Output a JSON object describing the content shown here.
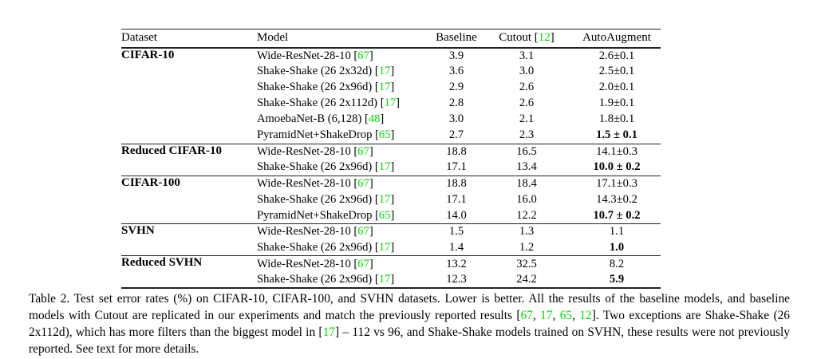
{
  "colors": {
    "citation_green": "#00dd00",
    "rule": "#222222",
    "text": "#000000",
    "background": "#ffffff"
  },
  "table": {
    "headers": {
      "dataset": "Dataset",
      "model": "Model",
      "baseline": "Baseline",
      "cutout": [
        {
          "t": "Cutout ["
        },
        {
          "t": "12",
          "g": true
        },
        {
          "t": "]"
        }
      ],
      "autoaugment": "AutoAugment"
    },
    "groups": [
      {
        "dataset": "CIFAR-10",
        "rows": [
          {
            "model": [
              {
                "t": "Wide-ResNet-28-10 ["
              },
              {
                "t": "67",
                "g": true
              },
              {
                "t": "]"
              }
            ],
            "baseline": "3.9",
            "cutout": "3.1",
            "autoaugment": "2.6±0.1",
            "aa_bold": false
          },
          {
            "model": [
              {
                "t": "Shake-Shake (26 2x32d) ["
              },
              {
                "t": "17",
                "g": true
              },
              {
                "t": "]"
              }
            ],
            "baseline": "3.6",
            "cutout": "3.0",
            "autoaugment": "2.5±0.1",
            "aa_bold": false
          },
          {
            "model": [
              {
                "t": "Shake-Shake (26 2x96d) ["
              },
              {
                "t": "17",
                "g": true
              },
              {
                "t": "]"
              }
            ],
            "baseline": "2.9",
            "cutout": "2.6",
            "autoaugment": "2.0±0.1",
            "aa_bold": false
          },
          {
            "model": [
              {
                "t": "Shake-Shake (26 2x112d) ["
              },
              {
                "t": "17",
                "g": true
              },
              {
                "t": "]"
              }
            ],
            "baseline": "2.8",
            "cutout": "2.6",
            "autoaugment": "1.9±0.1",
            "aa_bold": false
          },
          {
            "model": [
              {
                "t": "AmoebaNet-B (6,128) ["
              },
              {
                "t": "48",
                "g": true
              },
              {
                "t": "]"
              }
            ],
            "baseline": "3.0",
            "cutout": "2.1",
            "autoaugment": "1.8±0.1",
            "aa_bold": false
          },
          {
            "model": [
              {
                "t": "PyramidNet+ShakeDrop ["
              },
              {
                "t": "65",
                "g": true
              },
              {
                "t": "]"
              }
            ],
            "baseline": "2.7",
            "cutout": "2.3",
            "autoaugment": "1.5 ± 0.1",
            "aa_bold": true
          }
        ]
      },
      {
        "dataset": "Reduced CIFAR-10",
        "rows": [
          {
            "model": [
              {
                "t": "Wide-ResNet-28-10 ["
              },
              {
                "t": "67",
                "g": true
              },
              {
                "t": "]"
              }
            ],
            "baseline": "18.8",
            "cutout": "16.5",
            "autoaugment": "14.1±0.3",
            "aa_bold": false
          },
          {
            "model": [
              {
                "t": "Shake-Shake (26 2x96d) ["
              },
              {
                "t": "17",
                "g": true
              },
              {
                "t": "]"
              }
            ],
            "baseline": "17.1",
            "cutout": "13.4",
            "autoaugment": "10.0 ± 0.2",
            "aa_bold": true
          }
        ]
      },
      {
        "dataset": "CIFAR-100",
        "rows": [
          {
            "model": [
              {
                "t": "Wide-ResNet-28-10 ["
              },
              {
                "t": "67",
                "g": true
              },
              {
                "t": "]"
              }
            ],
            "baseline": "18.8",
            "cutout": "18.4",
            "autoaugment": "17.1±0.3",
            "aa_bold": false
          },
          {
            "model": [
              {
                "t": "Shake-Shake (26 2x96d) ["
              },
              {
                "t": "17",
                "g": true
              },
              {
                "t": "]"
              }
            ],
            "baseline": "17.1",
            "cutout": "16.0",
            "autoaugment": "14.3±0.2",
            "aa_bold": false
          },
          {
            "model": [
              {
                "t": "PyramidNet+ShakeDrop ["
              },
              {
                "t": "65",
                "g": true
              },
              {
                "t": "]"
              }
            ],
            "baseline": "14.0",
            "cutout": "12.2",
            "autoaugment": "10.7 ± 0.2",
            "aa_bold": true
          }
        ]
      },
      {
        "dataset": "SVHN",
        "rows": [
          {
            "model": [
              {
                "t": "Wide-ResNet-28-10 ["
              },
              {
                "t": "67",
                "g": true
              },
              {
                "t": "]"
              }
            ],
            "baseline": "1.5",
            "cutout": "1.3",
            "autoaugment": "1.1",
            "aa_bold": false
          },
          {
            "model": [
              {
                "t": "Shake-Shake (26 2x96d) ["
              },
              {
                "t": "17",
                "g": true
              },
              {
                "t": "]"
              }
            ],
            "baseline": "1.4",
            "cutout": "1.2",
            "autoaugment": "1.0",
            "aa_bold": true
          }
        ]
      },
      {
        "dataset": "Reduced SVHN",
        "rows": [
          {
            "model": [
              {
                "t": "Wide-ResNet-28-10 ["
              },
              {
                "t": "67",
                "g": true
              },
              {
                "t": "]"
              }
            ],
            "baseline": "13.2",
            "cutout": "32.5",
            "autoaugment": "8.2",
            "aa_bold": false
          },
          {
            "model": [
              {
                "t": "Shake-Shake (26 2x96d) ["
              },
              {
                "t": "17",
                "g": true
              },
              {
                "t": "]"
              }
            ],
            "baseline": "12.3",
            "cutout": "24.2",
            "autoaugment": "5.9",
            "aa_bold": true
          }
        ]
      }
    ]
  },
  "caption": {
    "segments": [
      {
        "t": "Table 2. Test set error rates (%) on CIFAR-10, CIFAR-100, and SVHN datasets. Lower is better. All the results of the baseline models, and baseline models with Cutout are replicated in our experiments and match the previously reported results ["
      },
      {
        "t": "67",
        "g": true
      },
      {
        "t": ", "
      },
      {
        "t": "17",
        "g": true
      },
      {
        "t": ", "
      },
      {
        "t": "65",
        "g": true
      },
      {
        "t": ", "
      },
      {
        "t": "12",
        "g": true
      },
      {
        "t": "]. Two exceptions are Shake-Shake (26 2x112d), which has more filters than the biggest model in ["
      },
      {
        "t": "17",
        "g": true
      },
      {
        "t": "] – 112 vs 96, and Shake-Shake models trained on SVHN, these results were not previously reported. See text for more details."
      }
    ]
  }
}
